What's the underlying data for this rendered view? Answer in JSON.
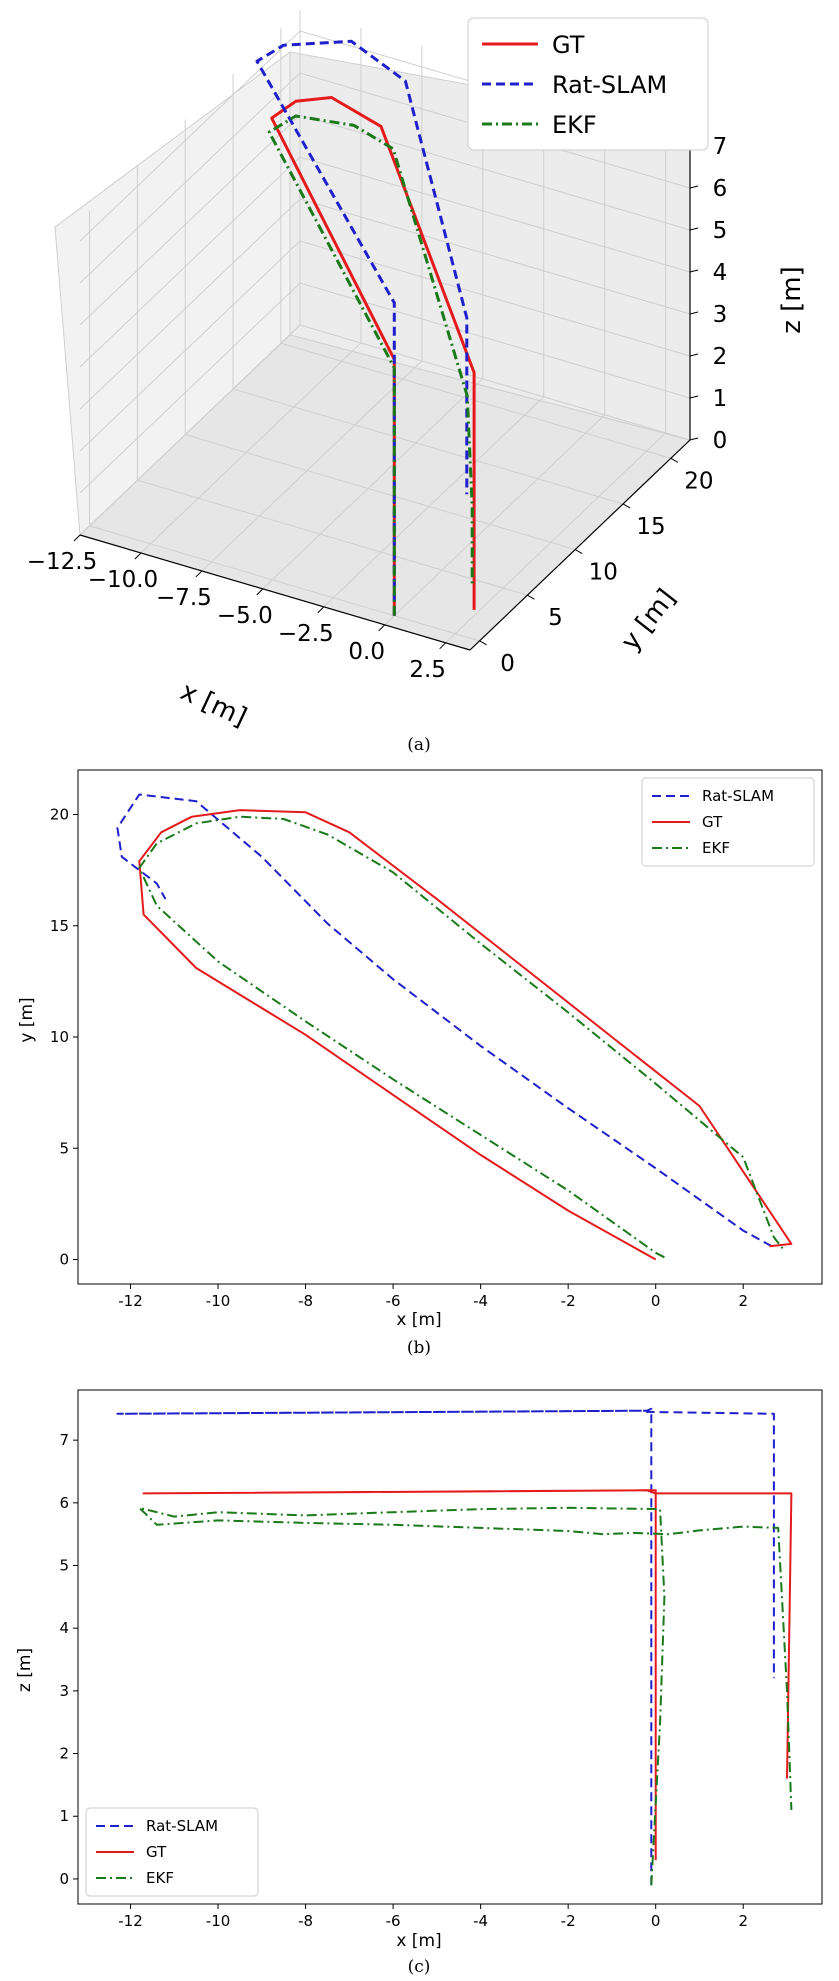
{
  "chart_data": [
    {
      "panel": "a",
      "caption": "(a)",
      "type": "line",
      "projection": "3d",
      "xlabel": "x [m]",
      "ylabel": "y [m]",
      "zlabel": "z [m]",
      "xticks": [
        "−12.5",
        "−10.0",
        "−7.5",
        "−5.0",
        "−2.5",
        "0.0",
        "2.5"
      ],
      "yticks": [
        "0",
        "5",
        "10",
        "15",
        "20"
      ],
      "zticks": [
        "0",
        "1",
        "2",
        "3",
        "4",
        "5",
        "6",
        "7"
      ],
      "xlim": [
        -12.5,
        3.5
      ],
      "ylim": [
        -1,
        22
      ],
      "zlim": [
        0,
        7.5
      ],
      "legend_position": "top-right",
      "series": [
        {
          "name": "GT",
          "color": "#e41a1c",
          "dash": "solid",
          "x": [
            0,
            0,
            -11.7,
            -11.5,
            -10.5,
            -8,
            3,
            3,
            3
          ],
          "y": [
            0,
            0,
            17,
            19,
            20.2,
            19,
            0.7,
            0.7,
            0.7
          ],
          "z": [
            0,
            6.1,
            6.15,
            6.15,
            6.15,
            6.15,
            6.15,
            2,
            0.5
          ]
        },
        {
          "name": "Rat-SLAM",
          "color": "#1f1fcc",
          "dash": "dashed",
          "x": [
            0,
            0,
            -12.3,
            -12,
            -10,
            -7,
            2.7,
            2.7
          ],
          "y": [
            0,
            0,
            17,
            19,
            21,
            19,
            0.7,
            0.7
          ],
          "z": [
            0,
            7.45,
            7.4,
            7.4,
            7.4,
            7.4,
            7.4,
            3.2
          ]
        },
        {
          "name": "EKF",
          "color": "#1a7a1a",
          "dash": "dashdot",
          "x": [
            0,
            0,
            -11.8,
            -11.5,
            -9.5,
            -7.5,
            2.8,
            3,
            3
          ],
          "y": [
            0,
            0,
            17,
            19,
            20,
            19,
            0.5,
            0.5,
            0.5
          ],
          "z": [
            0,
            5.9,
            5.8,
            5.8,
            5.7,
            5.7,
            5.6,
            3,
            1.1
          ]
        }
      ]
    },
    {
      "panel": "b",
      "caption": "(b)",
      "type": "line",
      "xlabel": "x [m]",
      "ylabel": "y [m]",
      "xlim": [
        -13.2,
        3.8
      ],
      "ylim": [
        -1.1,
        22.0
      ],
      "xticks": [
        -12,
        -10,
        -8,
        -6,
        -4,
        -2,
        0,
        2
      ],
      "yticks": [
        0,
        5,
        10,
        15,
        20
      ],
      "legend_position": "top-right",
      "series": [
        {
          "name": "Rat-SLAM",
          "color": "#1f1fcc",
          "dash": "dashed",
          "x": [
            2.65,
            2.0,
            0,
            -2,
            -4,
            -6,
            -7.5,
            -9,
            -10.5,
            -11.8,
            -12.3,
            -12.2,
            -11.4,
            -11.2
          ],
          "y": [
            0.6,
            1.3,
            4.1,
            6.8,
            9.6,
            12.6,
            15.1,
            18.1,
            20.6,
            20.9,
            19.4,
            18.1,
            16.9,
            16.2
          ]
        },
        {
          "name": "GT",
          "color": "#e41a1c",
          "dash": "solid",
          "x": [
            0,
            -2,
            -4,
            -6,
            -8,
            -10.5,
            -11.7,
            -11.8,
            -11.3,
            -10.6,
            -9.5,
            -8,
            -7,
            -5,
            -3,
            -1,
            1,
            3.1,
            2.6
          ],
          "y": [
            0,
            2.2,
            4.7,
            7.4,
            10.1,
            13.1,
            15.5,
            17.9,
            19.2,
            19.9,
            20.2,
            20.1,
            19.2,
            16.2,
            13.1,
            10.0,
            6.9,
            0.7,
            0.6
          ]
        },
        {
          "name": "EKF",
          "color": "#1a7a1a",
          "dash": "dashdot",
          "x": [
            0.2,
            0,
            -2,
            -4,
            -6,
            -8,
            -10,
            -11.4,
            -11.8,
            -11.4,
            -10.5,
            -9.5,
            -8.5,
            -7.5,
            -6,
            -4,
            -2,
            0,
            2,
            2.7,
            2.9
          ],
          "y": [
            0.1,
            0.3,
            3.1,
            5.6,
            8.1,
            10.7,
            13.4,
            15.9,
            17.6,
            18.7,
            19.6,
            19.9,
            19.8,
            19.1,
            17.4,
            14.2,
            11.1,
            7.9,
            4.6,
            1.0,
            0.5
          ]
        }
      ]
    },
    {
      "panel": "c",
      "caption": "(c)",
      "type": "line",
      "xlabel": "x [m]",
      "ylabel": "z [m]",
      "xlim": [
        -13.2,
        3.8
      ],
      "ylim": [
        -0.4,
        7.8
      ],
      "xticks": [
        -12,
        -10,
        -8,
        -6,
        -4,
        -2,
        0,
        2
      ],
      "yticks": [
        0,
        1,
        2,
        3,
        4,
        5,
        6,
        7
      ],
      "legend_position": "bottom-left",
      "series": [
        {
          "name": "Rat-SLAM",
          "color": "#1f1fcc",
          "dash": "dashed",
          "x": [
            -0.1,
            -0.1,
            -0.2,
            -12.3,
            -0.2,
            -0.2,
            2.7,
            2.7
          ],
          "y": [
            -0.1,
            7.5,
            7.47,
            7.42,
            7.47,
            7.45,
            7.42,
            3.2
          ]
        },
        {
          "name": "GT",
          "color": "#e41a1c",
          "dash": "solid",
          "x": [
            0,
            0,
            -11.7,
            -0.2,
            0,
            3.1,
            3.0
          ],
          "y": [
            0.3,
            6.2,
            6.15,
            6.2,
            6.15,
            6.15,
            1.6
          ]
        },
        {
          "name": "EKF",
          "color": "#1a7a1a",
          "dash": "dashdot",
          "x": [
            -0.1,
            0.1,
            0.2,
            0.1,
            -2,
            -4,
            -6,
            -8,
            -10,
            -11,
            -11.8,
            -11.4,
            -10,
            -8,
            -6,
            -4,
            -2,
            -1.2,
            -0.5,
            0.3,
            1,
            2,
            2.8,
            3.0,
            3.1
          ],
          "y": [
            -0.1,
            2.5,
            4.5,
            5.9,
            5.92,
            5.9,
            5.85,
            5.8,
            5.85,
            5.78,
            5.92,
            5.65,
            5.72,
            5.68,
            5.65,
            5.6,
            5.55,
            5.5,
            5.52,
            5.5,
            5.56,
            5.62,
            5.6,
            3.0,
            1.1
          ]
        }
      ]
    }
  ]
}
